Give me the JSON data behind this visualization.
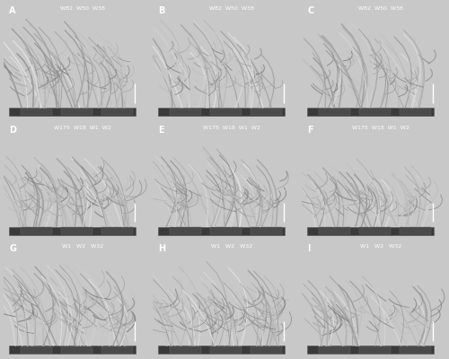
{
  "grid_rows": 3,
  "grid_cols": 3,
  "background_color": "#000000",
  "outer_background": "#c8c8c8",
  "panel_labels": [
    "A",
    "B",
    "C",
    "D",
    "E",
    "F",
    "G",
    "H",
    "I"
  ],
  "panel_sublabels": [
    "W82  W50  W38",
    "W82  W50  W38",
    "W82  W50  W38",
    "W175  W18  W1  W2",
    "W175  W18  W1  W2",
    "W175  W18  W1  W2",
    "W1   W2   W32",
    "W1   W2   W32",
    "W1   W2   W32"
  ],
  "label_color": "#ffffff",
  "label_fontsize": 7,
  "sublabel_fontsize": 4.5,
  "figure_width": 5.0,
  "figure_height": 4.0,
  "dpi": 100
}
